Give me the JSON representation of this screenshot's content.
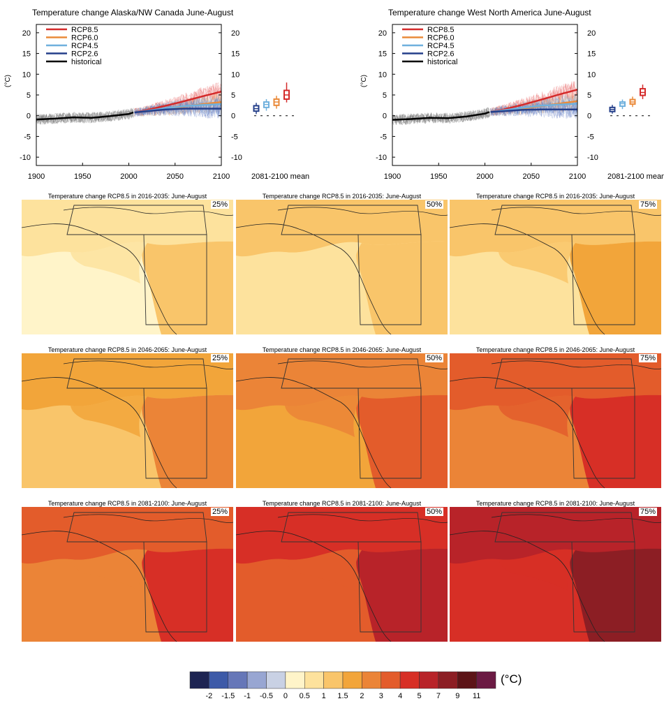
{
  "colorbar": {
    "colors": [
      "#1d2452",
      "#3d5aa8",
      "#6677b8",
      "#98a6d2",
      "#c9d1e4",
      "#fff4c9",
      "#fde29d",
      "#f9c56a",
      "#f2a53a",
      "#eb8437",
      "#e35c2b",
      "#d72f26",
      "#b82329",
      "#8c1e24",
      "#5c1417",
      "#6b1a43"
    ],
    "labels": [
      "-2",
      "-1.5",
      "-1",
      "-0.5",
      "0",
      "0.5",
      "1",
      "1.5",
      "2",
      "3",
      "4",
      "5",
      "7",
      "9",
      "11"
    ],
    "unit": "(°C)"
  },
  "chart_data": [
    {
      "type": "line",
      "title": "Temperature change Alaska/NW Canada June-August",
      "ylabel": "(°C)",
      "xlim": [
        1900,
        2100
      ],
      "ylim": [
        -12,
        22
      ],
      "xticks": [
        "1900",
        "1950",
        "2000",
        "2050",
        "2100"
      ],
      "yticks": [
        "20",
        "15",
        "10",
        "5",
        "0",
        "-5",
        "-10"
      ],
      "box_label": "2081-2100 mean",
      "series": [
        {
          "name": "RCP8.5",
          "color": "#d42a2a",
          "x": [
            2006,
            2020,
            2040,
            2060,
            2080,
            2100
          ],
          "y": [
            0.8,
            1.4,
            2.4,
            3.5,
            4.7,
            5.8
          ]
        },
        {
          "name": "RCP6.0",
          "color": "#ea8a3a",
          "x": [
            2006,
            2020,
            2040,
            2060,
            2080,
            2100
          ],
          "y": [
            0.8,
            1.1,
            1.6,
            2.2,
            2.8,
            3.3
          ]
        },
        {
          "name": "RCP4.5",
          "color": "#6fb0dd",
          "x": [
            2006,
            2020,
            2040,
            2060,
            2080,
            2100
          ],
          "y": [
            0.8,
            1.2,
            1.8,
            2.3,
            2.6,
            2.8
          ]
        },
        {
          "name": "RCP2.6",
          "color": "#243f8a",
          "x": [
            2006,
            2020,
            2040,
            2060,
            2080,
            2100
          ],
          "y": [
            0.8,
            1.1,
            1.5,
            1.7,
            1.7,
            1.7
          ]
        },
        {
          "name": "historical",
          "color": "#000000",
          "x": [
            1900,
            1920,
            1940,
            1960,
            1980,
            2000,
            2005
          ],
          "y": [
            -0.9,
            -0.7,
            -0.4,
            -0.5,
            -0.1,
            0.4,
            0.8
          ]
        }
      ],
      "boxes": [
        {
          "name": "RCP2.6",
          "color": "#243f8a",
          "min": 0.4,
          "q1": 1.1,
          "median": 1.7,
          "q3": 2.4,
          "max": 3.1
        },
        {
          "name": "RCP4.5",
          "color": "#6fb0dd",
          "min": 1.2,
          "q1": 2.0,
          "median": 2.7,
          "q3": 3.3,
          "max": 4.0
        },
        {
          "name": "RCP6.0",
          "color": "#ea8a3a",
          "min": 1.7,
          "q1": 2.5,
          "median": 3.3,
          "q3": 4.0,
          "max": 4.8
        },
        {
          "name": "RCP8.5",
          "color": "#d42a2a",
          "min": 3.2,
          "q1": 4.0,
          "median": 5.0,
          "q3": 6.1,
          "max": 8.0
        }
      ]
    },
    {
      "type": "line",
      "title": "Temperature change West North America June-August",
      "ylabel": "(°C)",
      "xlim": [
        1900,
        2100
      ],
      "ylim": [
        -12,
        22
      ],
      "xticks": [
        "1900",
        "1950",
        "2000",
        "2050",
        "2100"
      ],
      "yticks": [
        "20",
        "15",
        "10",
        "5",
        "0",
        "-5",
        "-10"
      ],
      "box_label": "2081-2100 mean",
      "series": [
        {
          "name": "RCP8.5",
          "color": "#d42a2a",
          "x": [
            2006,
            2020,
            2040,
            2060,
            2080,
            2100
          ],
          "y": [
            0.9,
            1.5,
            2.6,
            3.8,
            5.1,
            6.3
          ]
        },
        {
          "name": "RCP6.0",
          "color": "#ea8a3a",
          "x": [
            2006,
            2020,
            2040,
            2060,
            2080,
            2100
          ],
          "y": [
            0.9,
            1.2,
            1.7,
            2.3,
            2.9,
            3.5
          ]
        },
        {
          "name": "RCP4.5",
          "color": "#6fb0dd",
          "x": [
            2006,
            2020,
            2040,
            2060,
            2080,
            2100
          ],
          "y": [
            0.9,
            1.3,
            1.9,
            2.4,
            2.7,
            2.9
          ]
        },
        {
          "name": "RCP2.6",
          "color": "#243f8a",
          "x": [
            2006,
            2020,
            2040,
            2060,
            2080,
            2100
          ],
          "y": [
            0.9,
            1.1,
            1.4,
            1.5,
            1.5,
            1.5
          ]
        },
        {
          "name": "historical",
          "color": "#000000",
          "x": [
            1900,
            1920,
            1940,
            1960,
            1980,
            2000,
            2005
          ],
          "y": [
            -1.0,
            -0.8,
            -0.5,
            -0.6,
            -0.2,
            0.5,
            0.9
          ]
        }
      ],
      "boxes": [
        {
          "name": "RCP2.6",
          "color": "#243f8a",
          "min": 0.5,
          "q1": 1.0,
          "median": 1.5,
          "q3": 2.0,
          "max": 2.6
        },
        {
          "name": "RCP4.5",
          "color": "#6fb0dd",
          "min": 1.6,
          "q1": 2.3,
          "median": 2.9,
          "q3": 3.3,
          "max": 3.9
        },
        {
          "name": "RCP6.0",
          "color": "#ea8a3a",
          "min": 2.1,
          "q1": 2.8,
          "median": 3.3,
          "q3": 3.9,
          "max": 4.6
        },
        {
          "name": "RCP8.5",
          "color": "#d42a2a",
          "min": 4.0,
          "q1": 4.9,
          "median": 5.6,
          "q3": 6.5,
          "max": 7.5
        }
      ]
    },
    {
      "type": "heatmap",
      "maps": [
        {
          "title": "Temperature change RCP8.5 in 2016-2035: June-August",
          "percentile": "25%",
          "colors": [
            "#fde29d",
            "#fde29d",
            "#fff4c9",
            "#f9c56a"
          ]
        },
        {
          "title": "Temperature change RCP8.5 in 2016-2035: June-August",
          "percentile": "50%",
          "colors": [
            "#f9c56a",
            "#fde29d",
            "#fde29d",
            "#f9c56a"
          ]
        },
        {
          "title": "Temperature change RCP8.5 in 2016-2035: June-August",
          "percentile": "75%",
          "colors": [
            "#f9c56a",
            "#f9c56a",
            "#fde29d",
            "#f2a53a"
          ]
        },
        {
          "title": "Temperature change RCP8.5 in 2046-2065: June-August",
          "percentile": "25%",
          "colors": [
            "#f2a53a",
            "#f2a53a",
            "#f9c56a",
            "#eb8437"
          ]
        },
        {
          "title": "Temperature change RCP8.5 in 2046-2065: June-August",
          "percentile": "50%",
          "colors": [
            "#eb8437",
            "#eb8437",
            "#f2a53a",
            "#e35c2b"
          ]
        },
        {
          "title": "Temperature change RCP8.5 in 2046-2065: June-August",
          "percentile": "75%",
          "colors": [
            "#e35c2b",
            "#e35c2b",
            "#eb8437",
            "#d72f26"
          ]
        },
        {
          "title": "Temperature change RCP8.5 in 2081-2100: June-August",
          "percentile": "25%",
          "colors": [
            "#e35c2b",
            "#eb8437",
            "#eb8437",
            "#d72f26"
          ]
        },
        {
          "title": "Temperature change RCP8.5 in 2081-2100: June-August",
          "percentile": "50%",
          "colors": [
            "#d72f26",
            "#e35c2b",
            "#e35c2b",
            "#b82329"
          ]
        },
        {
          "title": "Temperature change RCP8.5 in 2081-2100: June-August",
          "percentile": "75%",
          "colors": [
            "#b82329",
            "#d72f26",
            "#d72f26",
            "#8c1e24"
          ]
        }
      ]
    }
  ]
}
